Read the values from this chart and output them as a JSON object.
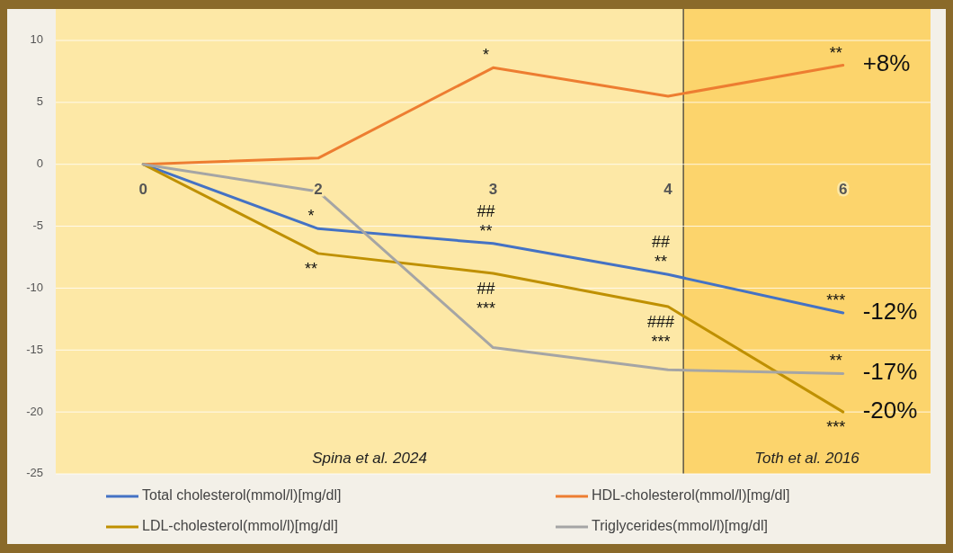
{
  "chart_data": {
    "type": "line",
    "categories": [
      "0",
      "2",
      "3",
      "4",
      "6"
    ],
    "ylim": [
      -25,
      10
    ],
    "yticks": [
      -25,
      -20,
      -15,
      -10,
      -5,
      0,
      5,
      10
    ],
    "grid": "y",
    "legend": "bottom",
    "series": [
      {
        "name": "Total cholesterol(mmol/l)[mg/dl]",
        "color": "#4472c4",
        "values": [
          0,
          -5.2,
          -6.4,
          -8.9,
          -12
        ],
        "value_labels": [
          null,
          "*",
          "##\n**",
          "##\n**",
          "***"
        ]
      },
      {
        "name": "HDL-cholesterol(mmol/l)[mg/dl]",
        "color": "#ed7d31",
        "values": [
          0,
          0.5,
          7.8,
          5.5,
          8
        ],
        "value_labels": [
          null,
          null,
          "*",
          null,
          "**"
        ]
      },
      {
        "name": "LDL-cholesterol(mmol/l)[mg/dl]",
        "color": "#bf9000",
        "values": [
          0,
          -7.2,
          -8.8,
          -11.5,
          -20
        ],
        "value_labels": [
          null,
          "**",
          "##\n***",
          "###\n***",
          "***"
        ]
      },
      {
        "name": "Triglycerides(mmol/l)[mg/dl]",
        "color": "#a5a5a5",
        "values": [
          0,
          -2.2,
          -14.8,
          -16.6,
          -16.9
        ],
        "value_labels": [
          null,
          null,
          null,
          null,
          "**"
        ]
      }
    ],
    "bands": [
      {
        "axis": "x",
        "from": "0",
        "to": "4",
        "label": "Spina et al. 2024",
        "color": "#fde8a6"
      },
      {
        "axis": "x",
        "from": "4",
        "to": "6",
        "label": "Toth et al. 2016",
        "color": "#fcd46c"
      }
    ],
    "ref_lines": [
      {
        "axis": "x",
        "value": "4",
        "color": "#333333"
      }
    ],
    "annotations": [
      {
        "text": "+8%",
        "x": "6",
        "y": 8
      },
      {
        "text": "-12%",
        "x": "6",
        "y": -12
      },
      {
        "text": "-17%",
        "x": "6",
        "y": -16.9
      },
      {
        "text": "-20%",
        "x": "6",
        "y": -20
      }
    ]
  }
}
